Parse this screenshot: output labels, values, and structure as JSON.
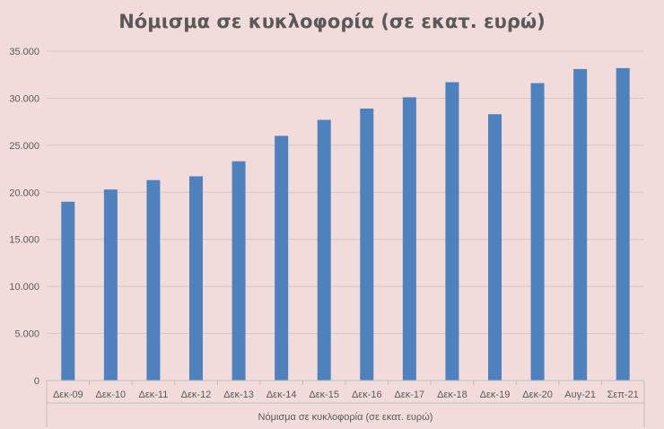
{
  "chart_data": {
    "type": "bar",
    "title": "Νόμισμα σε κυκλοφορία (σε εκατ. ευρώ)",
    "categories": [
      "Δεκ-09",
      "Δεκ-10",
      "Δεκ-11",
      "Δεκ-12",
      "Δεκ-13",
      "Δεκ-14",
      "Δεκ-15",
      "Δεκ-16",
      "Δεκ-17",
      "Δεκ-18",
      "Δεκ-19",
      "Δεκ-20",
      "Αυγ-21",
      "Σεπ-21"
    ],
    "series": [
      {
        "name": "Νόμισμα σε κυκλοφορία (σε εκατ. ευρώ)",
        "values": [
          19000,
          20300,
          21300,
          21700,
          23300,
          26000,
          27700,
          28900,
          30100,
          31700,
          28300,
          31600,
          33100,
          33200
        ],
        "color": "#4f81bd"
      }
    ],
    "ylim": [
      0,
      35000
    ],
    "yticks": [
      "0",
      "5.000",
      "10.000",
      "15.000",
      "20.000",
      "25.000",
      "30.000",
      "35.000"
    ],
    "ytick_values": [
      0,
      5000,
      10000,
      15000,
      20000,
      25000,
      30000,
      35000
    ],
    "grid": true,
    "legend": "bottom"
  }
}
